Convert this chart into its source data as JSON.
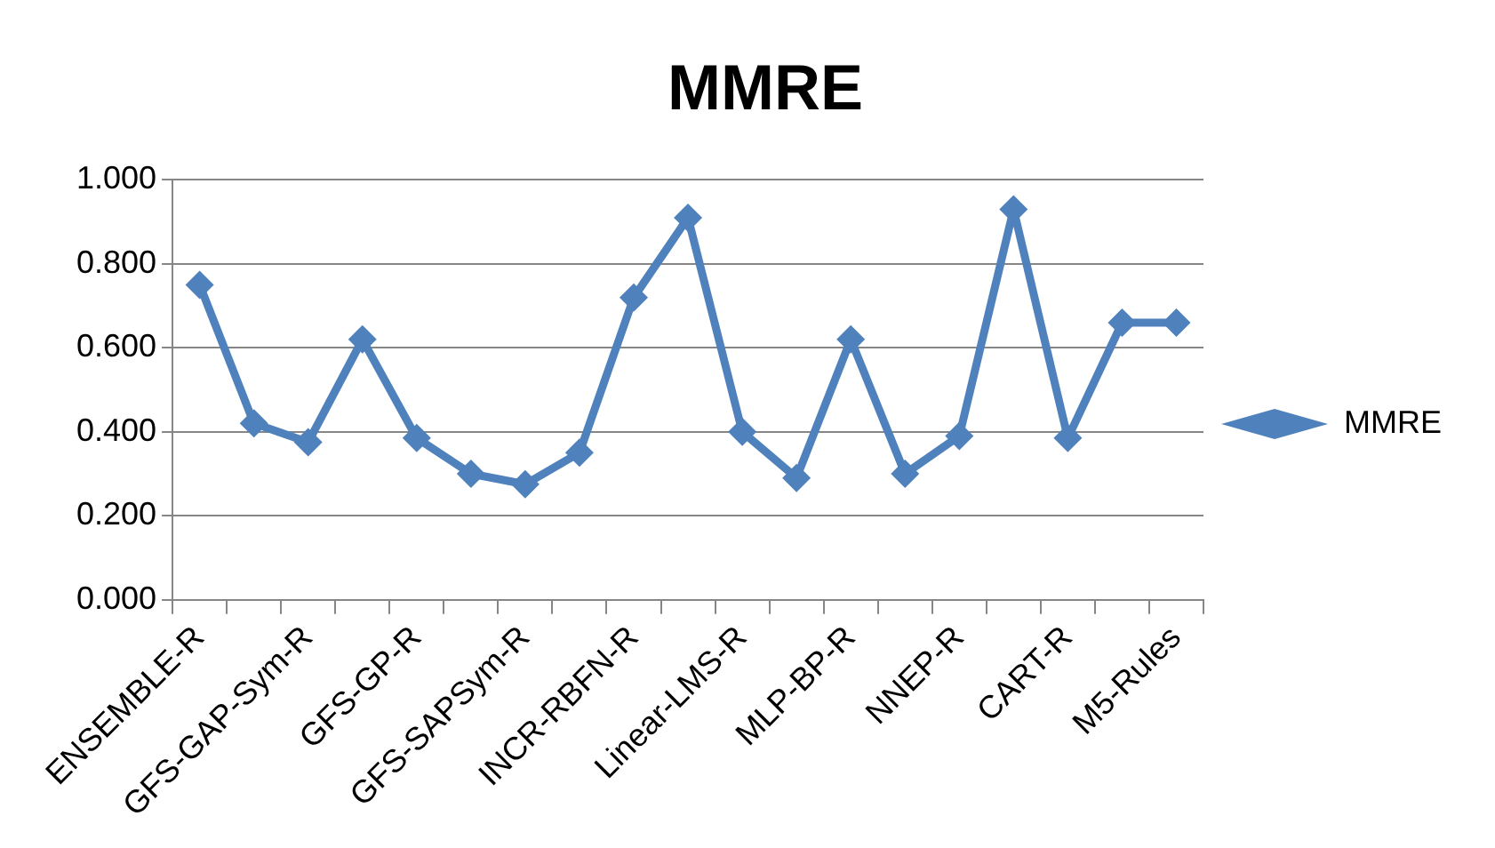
{
  "chart_data": {
    "type": "line",
    "title": "MMRE",
    "categories": [
      "ENSEMBLE-R",
      null,
      "GFS-GAP-Sym-R",
      null,
      "GFS-GP-R",
      null,
      "GFS-SAPSym-R",
      null,
      "INCR-RBFN-R",
      null,
      "Linear-LMS-R",
      null,
      "MLP-BP-R",
      null,
      "NNEP-R",
      null,
      "CART-R",
      null,
      "M5-Rules"
    ],
    "series": [
      {
        "name": "MMRE",
        "color": "#4f81bd",
        "values": [
          0.75,
          0.42,
          0.375,
          0.62,
          0.385,
          0.3,
          0.275,
          0.35,
          0.72,
          0.91,
          0.4,
          0.29,
          0.62,
          0.3,
          0.39,
          0.93,
          0.385,
          0.66,
          0.66
        ]
      }
    ],
    "ylim": [
      0,
      1
    ],
    "yticks": [
      {
        "value": 0,
        "label": "0.000"
      },
      {
        "value": 0.2,
        "label": "0.200"
      },
      {
        "value": 0.4,
        "label": "0.400"
      },
      {
        "value": 0.6,
        "label": "0.600"
      },
      {
        "value": 0.8,
        "label": "0.800"
      },
      {
        "value": 1,
        "label": "1.000"
      }
    ],
    "grid": "y",
    "legend": "right",
    "marker": "diamond",
    "line_style": "solid"
  }
}
